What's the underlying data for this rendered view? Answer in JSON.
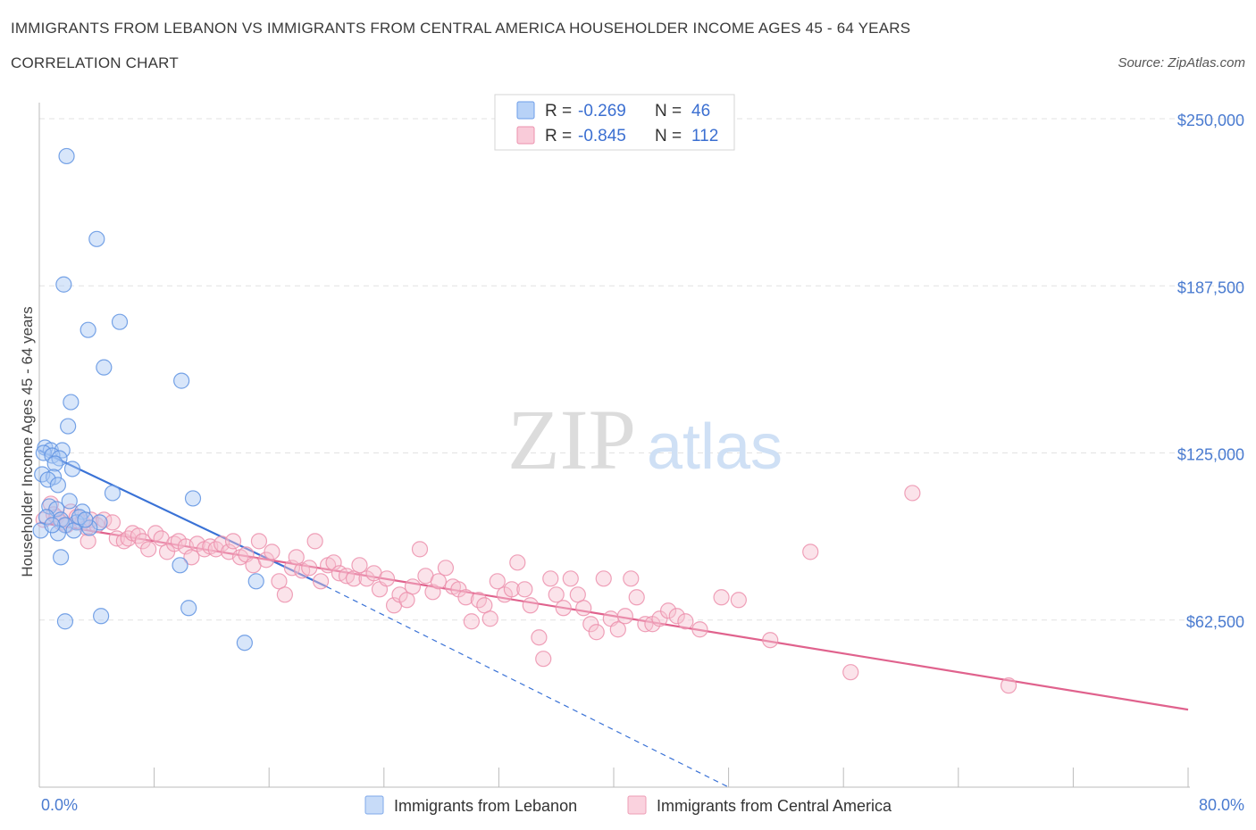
{
  "header": {
    "title": "IMMIGRANTS FROM LEBANON VS IMMIGRANTS FROM CENTRAL AMERICA HOUSEHOLDER INCOME AGES 45 - 64 YEARS",
    "subtitle": "CORRELATION CHART",
    "source": "Source: ZipAtlas.com"
  },
  "watermark": {
    "zip": "ZIP",
    "atlas": "atlas"
  },
  "legend": {
    "rows": [
      {
        "r_label": "R =",
        "r_value": "-0.269",
        "n_label": "N =",
        "n_value": "46",
        "color": "#a9c8f5",
        "stroke": "#6d9ee8"
      },
      {
        "r_label": "R =",
        "r_value": "-0.845",
        "n_label": "N =",
        "n_value": "112",
        "color": "#f7c0d0",
        "stroke": "#ec91ad"
      }
    ]
  },
  "chart_data": {
    "type": "scatter",
    "title": "IMMIGRANTS FROM LEBANON VS IMMIGRANTS FROM CENTRAL AMERICA HOUSEHOLDER INCOME AGES 45 - 64 YEARS",
    "xlabel": "",
    "ylabel": "Householder Income Ages 45 - 64 years",
    "xlim": [
      0,
      80
    ],
    "ylim": [
      0,
      250000
    ],
    "x_tick_labels": [
      "0.0%",
      "80.0%"
    ],
    "y_ticks": [
      {
        "value": 62500,
        "label": "$62,500"
      },
      {
        "value": 125000,
        "label": "$125,000"
      },
      {
        "value": 187500,
        "label": "$187,500"
      },
      {
        "value": 250000,
        "label": "$250,000"
      }
    ],
    "grid": true,
    "series": [
      {
        "name": "Immigrants from Lebanon",
        "color": "#a9c8f5",
        "stroke": "#5f93e2",
        "trend_color": "#3a72d6",
        "trend": {
          "x0": 0,
          "y0": 126000,
          "x1": 20,
          "y1": 75000,
          "dash_to_x": 48,
          "dash_to_y": 0
        },
        "points": [
          [
            1.9,
            236000
          ],
          [
            4.0,
            205000
          ],
          [
            1.7,
            188000
          ],
          [
            5.6,
            174000
          ],
          [
            3.4,
            171000
          ],
          [
            4.5,
            157000
          ],
          [
            9.9,
            152000
          ],
          [
            2.2,
            144000
          ],
          [
            2.0,
            135000
          ],
          [
            0.4,
            127000
          ],
          [
            0.8,
            126000
          ],
          [
            1.6,
            126000
          ],
          [
            0.3,
            125000
          ],
          [
            0.9,
            124000
          ],
          [
            1.4,
            123000
          ],
          [
            1.1,
            121000
          ],
          [
            2.3,
            119000
          ],
          [
            0.2,
            117000
          ],
          [
            1.0,
            116000
          ],
          [
            0.6,
            115000
          ],
          [
            1.3,
            113000
          ],
          [
            5.1,
            110000
          ],
          [
            10.7,
            108000
          ],
          [
            2.1,
            107000
          ],
          [
            0.7,
            105000
          ],
          [
            1.2,
            104000
          ],
          [
            3.0,
            103000
          ],
          [
            0.5,
            101000
          ],
          [
            1.5,
            100000
          ],
          [
            2.6,
            99000
          ],
          [
            1.8,
            98000
          ],
          [
            4.2,
            99000
          ],
          [
            3.5,
            97000
          ],
          [
            0.1,
            96000
          ],
          [
            1.3,
            95000
          ],
          [
            2.4,
            96000
          ],
          [
            1.5,
            86000
          ],
          [
            9.8,
            83000
          ],
          [
            15.1,
            77000
          ],
          [
            10.4,
            67000
          ],
          [
            4.3,
            64000
          ],
          [
            1.8,
            62000
          ],
          [
            14.3,
            54000
          ],
          [
            2.8,
            101000
          ],
          [
            0.9,
            98000
          ],
          [
            3.2,
            100000
          ]
        ]
      },
      {
        "name": "Immigrants from Central America",
        "color": "#f7c0d0",
        "stroke": "#ec91ad",
        "trend_color": "#e0628d",
        "trend": {
          "x0": 0,
          "y0": 99000,
          "x1": 80,
          "y1": 29000
        },
        "points": [
          [
            0.3,
            100000
          ],
          [
            0.8,
            106000
          ],
          [
            1.0,
            102000
          ],
          [
            1.2,
            101000
          ],
          [
            1.5,
            99000
          ],
          [
            1.9,
            98000
          ],
          [
            2.2,
            103000
          ],
          [
            2.6,
            101000
          ],
          [
            3.0,
            99000
          ],
          [
            3.3,
            97000
          ],
          [
            3.6,
            100000
          ],
          [
            3.4,
            92000
          ],
          [
            4.0,
            98000
          ],
          [
            4.5,
            100000
          ],
          [
            5.1,
            99000
          ],
          [
            5.4,
            93000
          ],
          [
            5.9,
            92000
          ],
          [
            6.2,
            93000
          ],
          [
            6.5,
            95000
          ],
          [
            6.9,
            94000
          ],
          [
            7.2,
            92000
          ],
          [
            7.6,
            89000
          ],
          [
            8.1,
            95000
          ],
          [
            8.5,
            93000
          ],
          [
            8.9,
            88000
          ],
          [
            9.4,
            91000
          ],
          [
            9.7,
            92000
          ],
          [
            10.2,
            90000
          ],
          [
            10.6,
            86000
          ],
          [
            11.0,
            91000
          ],
          [
            11.5,
            89000
          ],
          [
            11.9,
            90000
          ],
          [
            12.3,
            89000
          ],
          [
            12.7,
            91000
          ],
          [
            13.2,
            88000
          ],
          [
            13.5,
            92000
          ],
          [
            14.0,
            86000
          ],
          [
            14.4,
            87000
          ],
          [
            14.9,
            83000
          ],
          [
            15.3,
            92000
          ],
          [
            15.8,
            85000
          ],
          [
            16.2,
            88000
          ],
          [
            16.7,
            77000
          ],
          [
            17.1,
            72000
          ],
          [
            17.6,
            82000
          ],
          [
            17.9,
            86000
          ],
          [
            18.3,
            81000
          ],
          [
            18.8,
            82000
          ],
          [
            19.2,
            92000
          ],
          [
            19.6,
            77000
          ],
          [
            20.1,
            83000
          ],
          [
            20.5,
            84000
          ],
          [
            20.9,
            80000
          ],
          [
            21.4,
            79000
          ],
          [
            21.9,
            78000
          ],
          [
            22.3,
            83000
          ],
          [
            22.8,
            78000
          ],
          [
            23.3,
            80000
          ],
          [
            23.7,
            74000
          ],
          [
            24.2,
            78000
          ],
          [
            24.7,
            68000
          ],
          [
            25.1,
            72000
          ],
          [
            25.6,
            70000
          ],
          [
            26.0,
            75000
          ],
          [
            26.5,
            89000
          ],
          [
            26.9,
            79000
          ],
          [
            27.4,
            73000
          ],
          [
            27.8,
            77000
          ],
          [
            28.3,
            82000
          ],
          [
            28.8,
            75000
          ],
          [
            29.2,
            74000
          ],
          [
            29.7,
            71000
          ],
          [
            30.1,
            62000
          ],
          [
            30.6,
            70000
          ],
          [
            31.0,
            68000
          ],
          [
            31.4,
            63000
          ],
          [
            31.9,
            77000
          ],
          [
            32.4,
            72000
          ],
          [
            32.9,
            74000
          ],
          [
            33.3,
            84000
          ],
          [
            33.8,
            74000
          ],
          [
            34.2,
            68000
          ],
          [
            34.8,
            56000
          ],
          [
            35.1,
            48000
          ],
          [
            35.6,
            78000
          ],
          [
            36.0,
            72000
          ],
          [
            36.5,
            67000
          ],
          [
            37.0,
            78000
          ],
          [
            37.5,
            72000
          ],
          [
            37.9,
            67000
          ],
          [
            38.4,
            61000
          ],
          [
            38.8,
            58000
          ],
          [
            39.3,
            78000
          ],
          [
            39.8,
            63000
          ],
          [
            40.3,
            59000
          ],
          [
            40.8,
            64000
          ],
          [
            41.2,
            78000
          ],
          [
            41.6,
            71000
          ],
          [
            42.2,
            61000
          ],
          [
            42.7,
            61000
          ],
          [
            43.2,
            63000
          ],
          [
            43.8,
            66000
          ],
          [
            44.4,
            64000
          ],
          [
            45.0,
            62000
          ],
          [
            46.0,
            59000
          ],
          [
            47.5,
            71000
          ],
          [
            48.7,
            70000
          ],
          [
            50.9,
            55000
          ],
          [
            53.7,
            88000
          ],
          [
            56.5,
            43000
          ],
          [
            60.8,
            110000
          ],
          [
            67.5,
            38000
          ]
        ]
      }
    ],
    "legend_position": "top-center"
  },
  "bottom_legend": {
    "items": [
      {
        "label": "Immigrants from Lebanon"
      },
      {
        "label": "Immigrants from Central America"
      }
    ]
  }
}
